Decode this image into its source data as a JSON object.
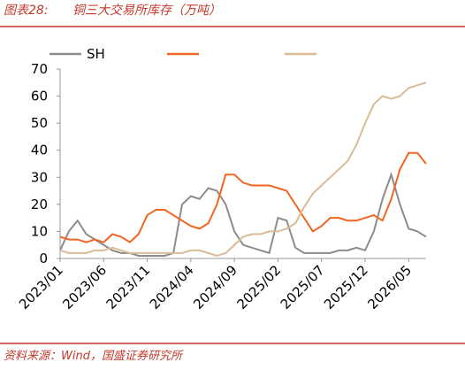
{
  "title_label": "图表28:",
  "source": "资料来源：Wind，国盛证券研究所",
  "chart_data": {
    "type": "line",
    "title": "铜三大交易所库存（万吨）",
    "x": [
      0,
      1,
      2,
      3,
      4,
      5,
      6,
      7,
      8,
      9,
      10,
      11,
      12,
      13,
      14,
      15,
      16,
      17,
      18,
      19,
      20,
      21,
      22,
      23,
      24,
      25,
      26,
      27,
      28,
      29,
      30,
      31,
      32,
      33,
      34,
      35,
      36,
      37,
      38,
      39,
      40,
      41,
      42
    ],
    "series": [
      {
        "name": "SH",
        "color": "#8c8c8c",
        "values": [
          3,
          10,
          14,
          9,
          7,
          5,
          3,
          2,
          2,
          1,
          1,
          1,
          1,
          2,
          20,
          23,
          22,
          26,
          25,
          20,
          10,
          5,
          4,
          3,
          2,
          15,
          14,
          4,
          2,
          2,
          2,
          2,
          3,
          3,
          4,
          3,
          10,
          22,
          31,
          20,
          11,
          10,
          8
        ]
      },
      {
        "color": "#f26522",
        "values": [
          8,
          7,
          7,
          6,
          7,
          6,
          9,
          8,
          6,
          9,
          16,
          18,
          18,
          16,
          14,
          12,
          11,
          13,
          20,
          31,
          31,
          28,
          27,
          27,
          27,
          26,
          25,
          20,
          15,
          10,
          12,
          15,
          15,
          14,
          14,
          15,
          16,
          14,
          22,
          33,
          39,
          39,
          35
        ]
      },
      {
        "color": "#d9bc96",
        "values": [
          3,
          2,
          2,
          2,
          3,
          3,
          4,
          3,
          2,
          2,
          2,
          2,
          2,
          2,
          2,
          3,
          3,
          2,
          1,
          2,
          5,
          8,
          9,
          9,
          10,
          10,
          11,
          13,
          19,
          24,
          27,
          30,
          33,
          36,
          42,
          50,
          57,
          60,
          59,
          60,
          63,
          64,
          65
        ]
      }
    ],
    "xlim": [
      0,
      42
    ],
    "xticks": [
      {
        "value": 0,
        "label": "2023/01"
      },
      {
        "value": 5,
        "label": "2023/06"
      },
      {
        "value": 10,
        "label": "2023/11"
      },
      {
        "value": 15,
        "label": "2024/04"
      },
      {
        "value": 20,
        "label": "2024/09"
      },
      {
        "value": 25,
        "label": "2025/02"
      },
      {
        "value": 30,
        "label": "2025/07"
      },
      {
        "value": 35,
        "label": "2025/12"
      },
      {
        "value": 40,
        "label": "2026/05"
      }
    ],
    "ylim": [
      0,
      70
    ],
    "yticks": [
      0,
      10,
      20,
      30,
      40,
      50,
      60,
      70
    ]
  }
}
